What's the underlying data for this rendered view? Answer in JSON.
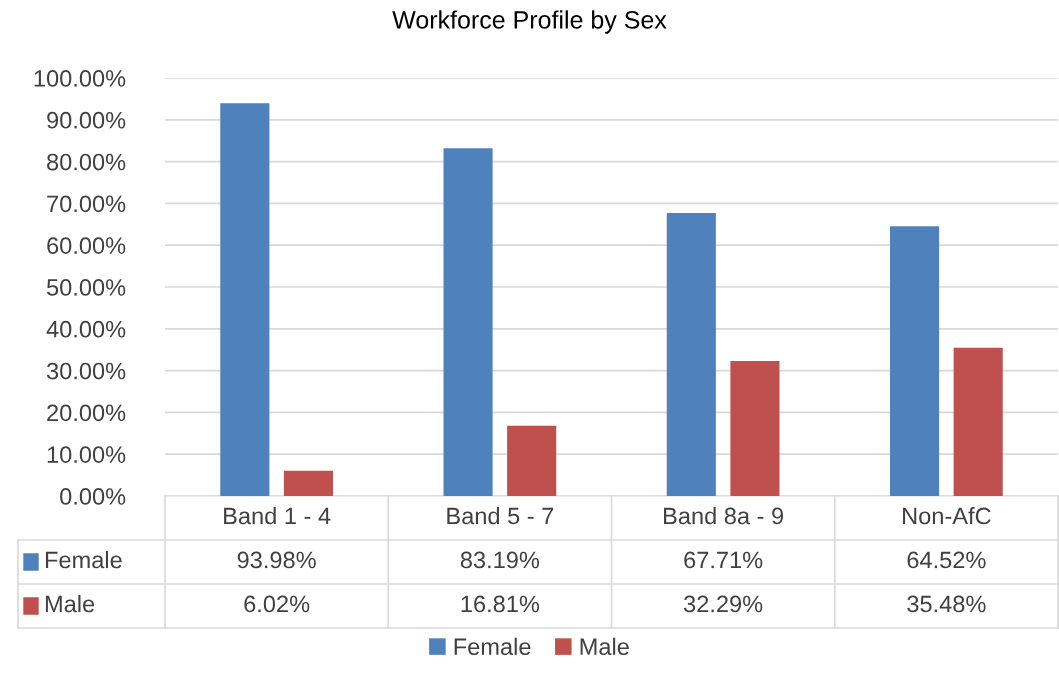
{
  "chart_data": {
    "type": "bar",
    "title": "Workforce Profile by Sex",
    "categories": [
      "Band 1 - 4",
      "Band 5 - 7",
      "Band 8a - 9",
      "Non-AfC"
    ],
    "series": [
      {
        "name": "Female",
        "color": "#4f81bd",
        "values": [
          93.98,
          83.19,
          67.71,
          64.52
        ],
        "value_labels": [
          "93.98%",
          "83.19%",
          "67.71%",
          "64.52%"
        ]
      },
      {
        "name": "Male",
        "color": "#c0504d",
        "values": [
          6.02,
          16.81,
          32.29,
          35.48
        ],
        "value_labels": [
          "6.02%",
          "16.81%",
          "32.29%",
          "35.48%"
        ]
      }
    ],
    "ylim": [
      0,
      100
    ],
    "yticks": [
      {
        "value": 0,
        "label": "0.00%"
      },
      {
        "value": 10,
        "label": "10.00%"
      },
      {
        "value": 20,
        "label": "20.00%"
      },
      {
        "value": 30,
        "label": "30.00%"
      },
      {
        "value": 40,
        "label": "40.00%"
      },
      {
        "value": 50,
        "label": "50.00%"
      },
      {
        "value": 60,
        "label": "60.00%"
      },
      {
        "value": 70,
        "label": "70.00%"
      },
      {
        "value": 80,
        "label": "80.00%"
      },
      {
        "value": 90,
        "label": "90.00%"
      },
      {
        "value": 100,
        "label": "100.00%"
      }
    ],
    "grid": "y",
    "legend": "bottom"
  }
}
